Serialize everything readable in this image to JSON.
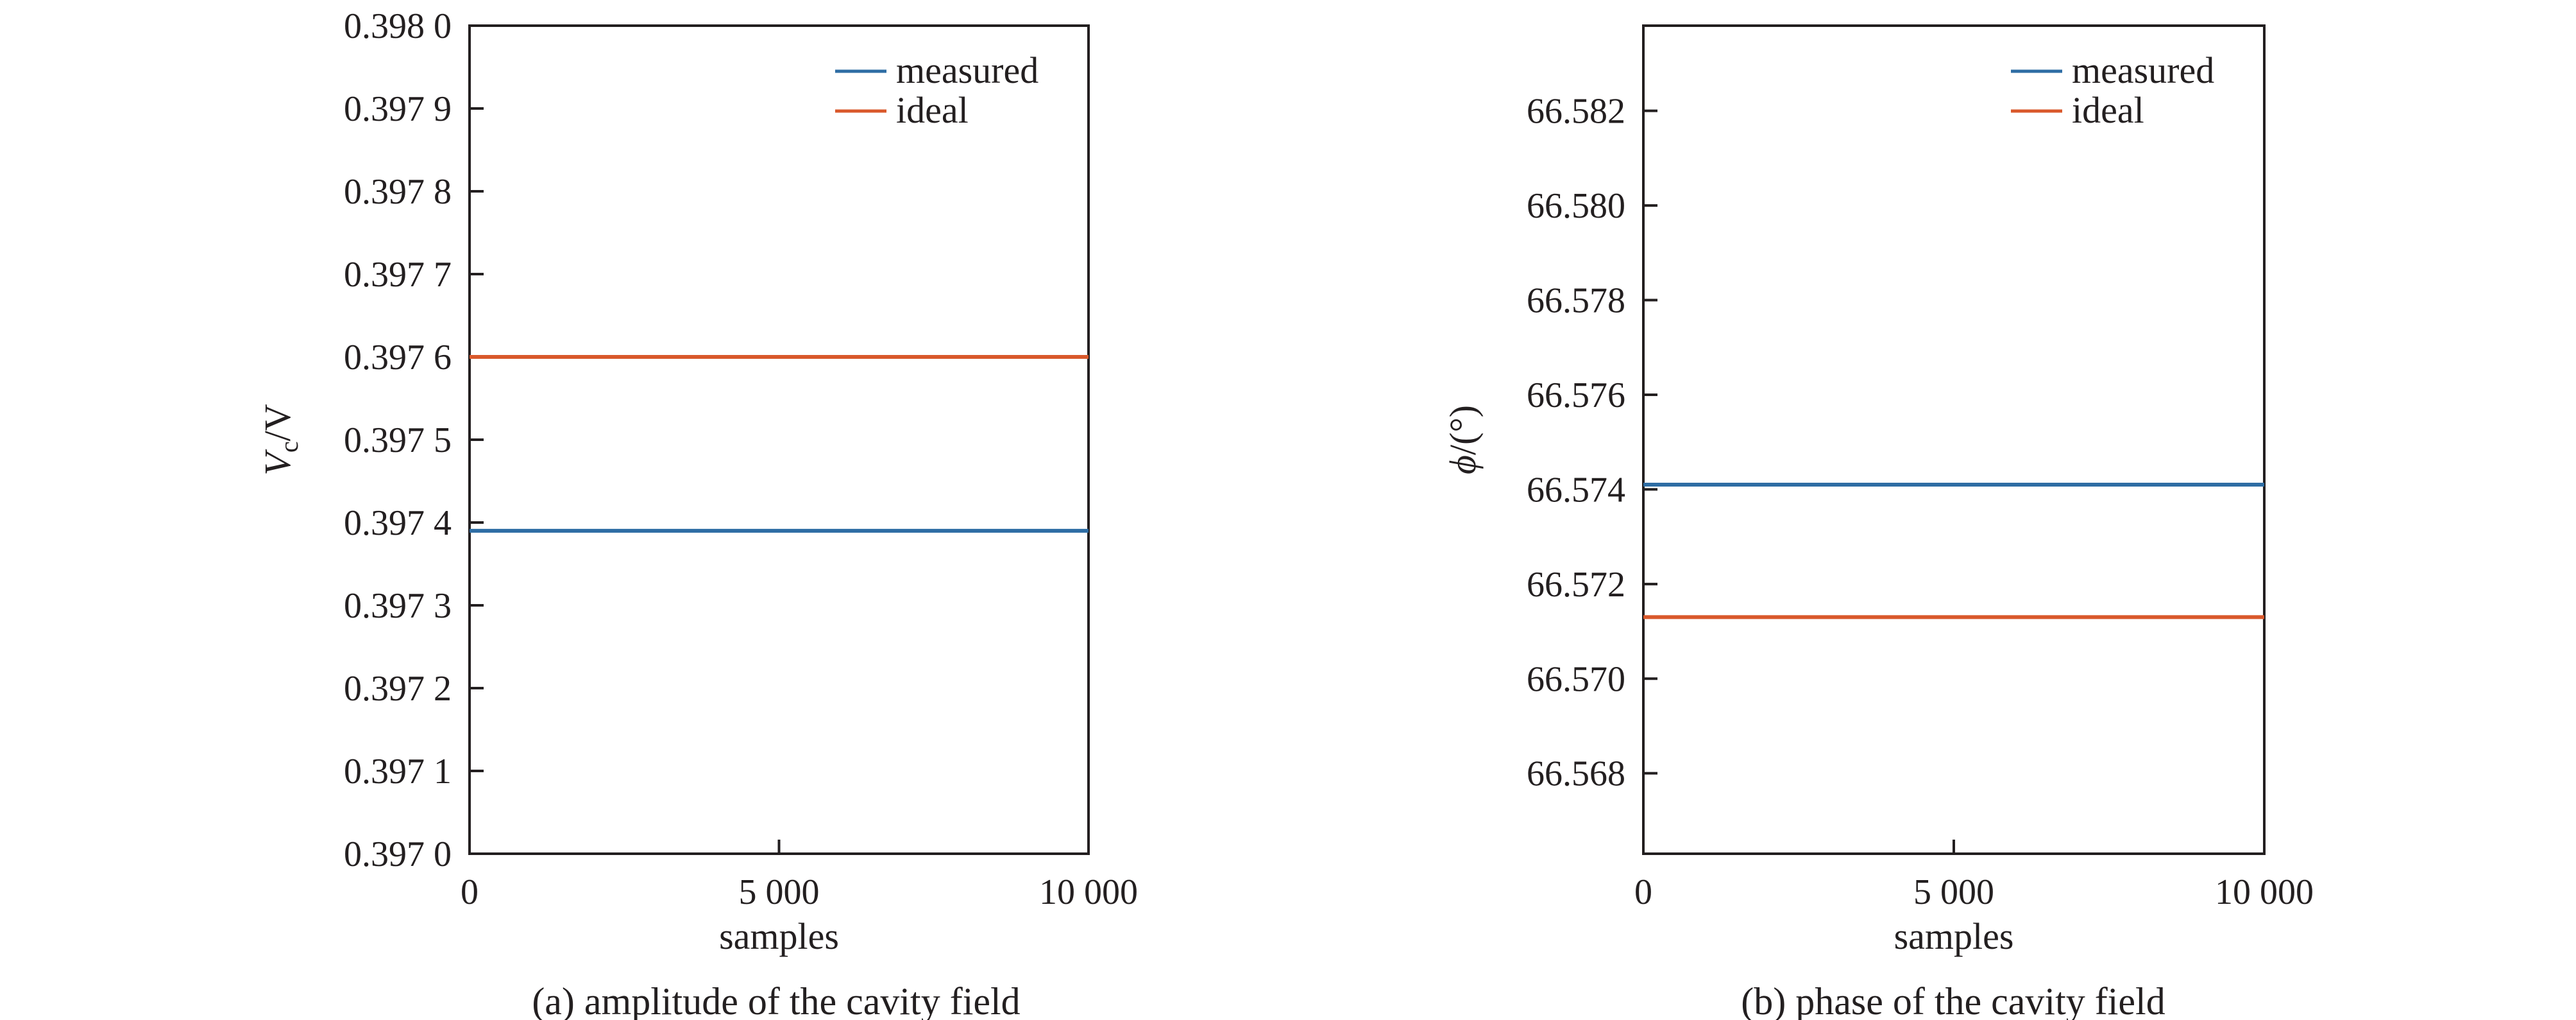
{
  "chart_data": [
    {
      "type": "line",
      "caption": "(a) amplitude of the cavity field",
      "xlabel": "samples",
      "ylabel_symbol": "V",
      "ylabel_subscript": "c",
      "ylabel_unit": "/V",
      "xlim": [
        0,
        10000
      ],
      "ylim": [
        0.397,
        0.398
      ],
      "xticks": [
        {
          "value": 0,
          "label": "0"
        },
        {
          "value": 5000,
          "label": "5 000"
        },
        {
          "value": 10000,
          "label": "10 000"
        }
      ],
      "yticks": [
        {
          "value": 0.397,
          "label": "0.397 0"
        },
        {
          "value": 0.3971,
          "label": "0.397 1"
        },
        {
          "value": 0.3972,
          "label": "0.397 2"
        },
        {
          "value": 0.3973,
          "label": "0.397 3"
        },
        {
          "value": 0.3974,
          "label": "0.397 4"
        },
        {
          "value": 0.3975,
          "label": "0.397 5"
        },
        {
          "value": 0.3976,
          "label": "0.397 6"
        },
        {
          "value": 0.3977,
          "label": "0.397 7"
        },
        {
          "value": 0.3978,
          "label": "0.397 8"
        },
        {
          "value": 0.3979,
          "label": "0.397 9"
        },
        {
          "value": 0.398,
          "label": "0.398 0"
        }
      ],
      "legend_position": "top-right",
      "grid": false,
      "series": [
        {
          "name": "measured",
          "color": "#2e6da4",
          "x": [
            0,
            10000
          ],
          "y": [
            0.39739,
            0.39739
          ]
        },
        {
          "name": "ideal",
          "color": "#d9582b",
          "x": [
            0,
            10000
          ],
          "y": [
            0.3976,
            0.3976
          ]
        }
      ]
    },
    {
      "type": "line",
      "caption": "(b) phase of the cavity field",
      "xlabel": "samples",
      "ylabel_symbol": "ϕ",
      "ylabel_subscript": "",
      "ylabel_unit": "/(°)",
      "xlim": [
        0,
        10000
      ],
      "ylim": [
        66.5663,
        66.5838
      ],
      "xticks": [
        {
          "value": 0,
          "label": "0"
        },
        {
          "value": 5000,
          "label": "5 000"
        },
        {
          "value": 10000,
          "label": "10 000"
        }
      ],
      "yticks": [
        {
          "value": 66.568,
          "label": "66.568"
        },
        {
          "value": 66.57,
          "label": "66.570"
        },
        {
          "value": 66.572,
          "label": "66.572"
        },
        {
          "value": 66.574,
          "label": "66.574"
        },
        {
          "value": 66.576,
          "label": "66.576"
        },
        {
          "value": 66.578,
          "label": "66.578"
        },
        {
          "value": 66.58,
          "label": "66.580"
        },
        {
          "value": 66.582,
          "label": "66.582"
        }
      ],
      "legend_position": "top-right",
      "grid": false,
      "series": [
        {
          "name": "measured",
          "color": "#2e6da4",
          "x": [
            0,
            10000
          ],
          "y": [
            66.5741,
            66.5741
          ]
        },
        {
          "name": "ideal",
          "color": "#d9582b",
          "x": [
            0,
            10000
          ],
          "y": [
            66.5713,
            66.5713
          ]
        }
      ]
    }
  ]
}
